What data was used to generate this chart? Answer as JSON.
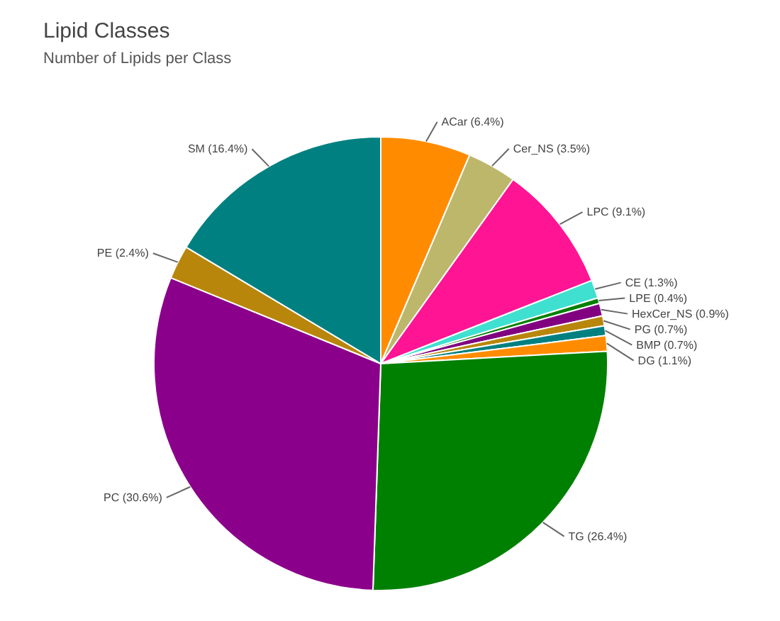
{
  "chart_data": {
    "type": "pie",
    "title": "Lipid Classes",
    "subtitle": "Number of Lipids per Class",
    "categories": [
      "ACar",
      "Cer_NS",
      "LPC",
      "CE",
      "LPE",
      "HexCer_NS",
      "PG",
      "BMP",
      "DG",
      "TG",
      "PC",
      "PE",
      "SM"
    ],
    "values": [
      6.4,
      3.5,
      9.1,
      1.3,
      0.4,
      0.9,
      0.7,
      0.7,
      1.1,
      26.4,
      30.6,
      2.4,
      16.4
    ],
    "value_labels": [
      "(6.4%)",
      "(3.5%)",
      "(9.1%)",
      "(1.3%)",
      "(0.4%)",
      "(0.9%)",
      "(0.7%)",
      "(0.7%)",
      "(1.1%)",
      "(26.4%)",
      "(30.6%)",
      "(2.4%)",
      "(16.4%)"
    ],
    "colors": [
      "#ff8c00",
      "#bdb76b",
      "#ff1493",
      "#40e0d0",
      "#008000",
      "#800080",
      "#b8860b",
      "#008080",
      "#ff8c00",
      "#008000",
      "#8b008b",
      "#b8860b",
      "#008080"
    ]
  }
}
